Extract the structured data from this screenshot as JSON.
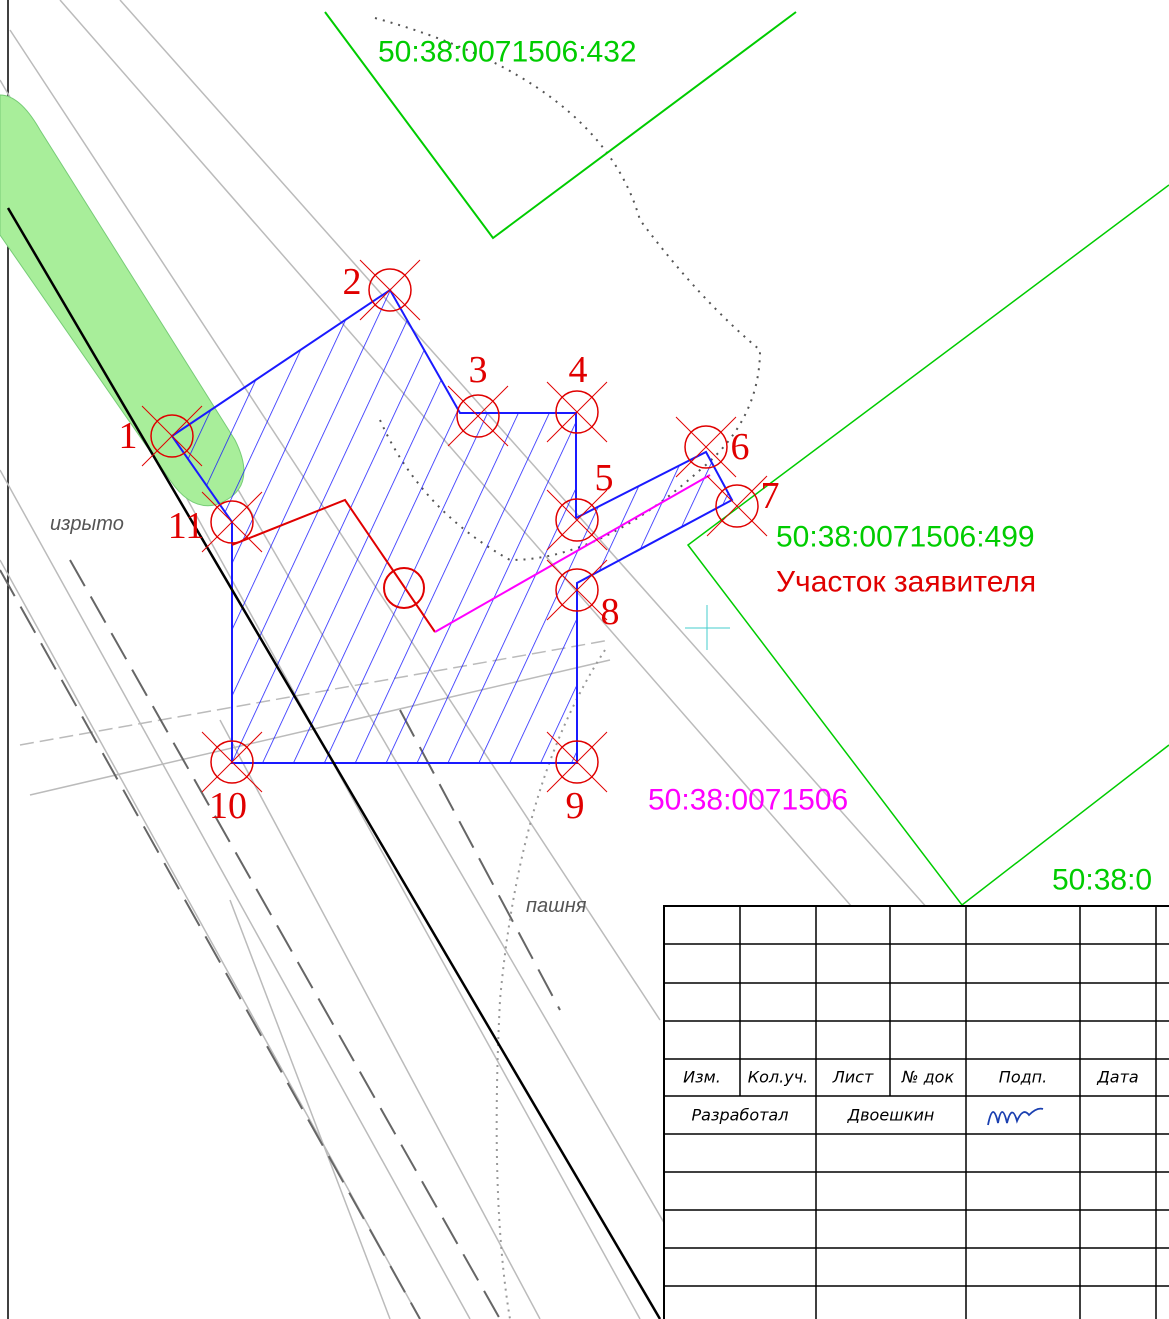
{
  "parcels": [
    {
      "label": "50:38:0071506:432"
    },
    {
      "label": "50:38:0071506:499"
    },
    {
      "label": "50:38:0071506"
    },
    {
      "label": "50:38:0"
    }
  ],
  "applicant_label": "Участок заявителя",
  "points": [
    "1",
    "2",
    "3",
    "4",
    "5",
    "6",
    "7",
    "8",
    "9",
    "10",
    "11"
  ],
  "land_notes": [
    "изрыто",
    "пашня"
  ],
  "title_block": {
    "headers": [
      "Изм.",
      "Кол.уч.",
      "Лист",
      "№ док",
      "Подп.",
      "Дата"
    ],
    "developer_role": "Разработал",
    "developer_name": "Двоешкин"
  }
}
